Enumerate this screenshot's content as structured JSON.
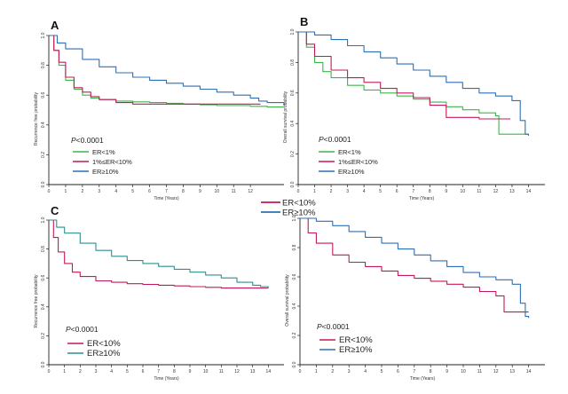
{
  "chart_data": [
    {
      "id": "A",
      "type": "line",
      "panel_label": "A",
      "xlabel": "Time (Years)",
      "ylabel": "Recurrence free probability",
      "xlim": [
        0,
        14
      ],
      "ylim": [
        0,
        1.0
      ],
      "xticks": [
        0,
        1,
        2,
        3,
        4,
        5,
        6,
        7,
        8,
        9,
        10,
        11,
        12
      ],
      "yticks": [
        0.0,
        0.2,
        0.4,
        0.6,
        0.8,
        1.0
      ],
      "pvalue": {
        "p": "P",
        "rest": "<0.0001"
      },
      "legend_size": "small",
      "series": [
        {
          "name": "ER<1%",
          "color": "#3bb54a",
          "x": [
            0,
            0.3,
            0.6,
            1,
            1.5,
            2,
            2.5,
            3,
            4,
            5,
            6,
            7,
            8,
            9,
            10,
            11,
            12,
            13,
            14
          ],
          "y": [
            1,
            0.9,
            0.8,
            0.7,
            0.64,
            0.6,
            0.58,
            0.57,
            0.56,
            0.555,
            0.55,
            0.545,
            0.54,
            0.535,
            0.53,
            0.53,
            0.525,
            0.52,
            0.52
          ]
        },
        {
          "name": "1%≤ER<10%",
          "color": "#c2185b",
          "x": [
            0,
            0.3,
            0.6,
            1,
            1.5,
            2,
            2.5,
            3,
            4,
            5,
            6,
            7,
            8,
            9,
            10,
            11,
            12,
            12.6
          ],
          "y": [
            1,
            0.9,
            0.82,
            0.72,
            0.65,
            0.62,
            0.59,
            0.57,
            0.55,
            0.54,
            0.54,
            0.54,
            0.54,
            0.54,
            0.54,
            0.54,
            0.54,
            0.54
          ]
        },
        {
          "name": "ER≥10%",
          "color": "#2d6fb5",
          "x": [
            0,
            0.5,
            1,
            2,
            3,
            4,
            5,
            6,
            7,
            8,
            9,
            10,
            11,
            12,
            12.5,
            13,
            14
          ],
          "y": [
            1,
            0.95,
            0.91,
            0.84,
            0.79,
            0.75,
            0.72,
            0.7,
            0.68,
            0.66,
            0.64,
            0.62,
            0.6,
            0.58,
            0.56,
            0.55,
            0.53
          ]
        }
      ]
    },
    {
      "id": "B",
      "type": "line",
      "panel_label": "B",
      "xlabel": "Time (Years)",
      "ylabel": "Overall survival probability",
      "xlim": [
        0,
        15
      ],
      "ylim": [
        0,
        1.0
      ],
      "xticks": [
        0,
        1,
        2,
        3,
        4,
        5,
        6,
        7,
        8,
        9,
        10,
        11,
        12,
        13,
        14
      ],
      "yticks": [
        0.0,
        0.2,
        0.4,
        0.6,
        0.8,
        1.0
      ],
      "pvalue": {
        "p": "P",
        "rest": "<0.0001"
      },
      "legend_size": "small",
      "series": [
        {
          "name": "ER<1%",
          "color": "#3bb54a",
          "x": [
            0,
            0.5,
            1,
            1.5,
            2,
            3,
            4,
            5,
            6,
            7,
            8,
            9,
            10,
            11,
            12,
            12.2,
            13,
            14
          ],
          "y": [
            1,
            0.9,
            0.8,
            0.74,
            0.7,
            0.65,
            0.62,
            0.6,
            0.58,
            0.56,
            0.54,
            0.51,
            0.49,
            0.47,
            0.45,
            0.33,
            0.33,
            0.33
          ]
        },
        {
          "name": "1%≤ER<10%",
          "color": "#c2185b",
          "x": [
            0,
            0.5,
            1,
            2,
            3,
            4,
            5,
            6,
            7,
            8,
            9,
            10,
            11,
            12,
            12.9
          ],
          "y": [
            1,
            0.92,
            0.84,
            0.75,
            0.7,
            0.67,
            0.63,
            0.6,
            0.57,
            0.52,
            0.44,
            0.44,
            0.43,
            0.43,
            0.43
          ]
        },
        {
          "name": "ER≥10%",
          "color": "#2d6fb5",
          "x": [
            0,
            1,
            2,
            3,
            4,
            5,
            6,
            7,
            8,
            9,
            10,
            11,
            12,
            13,
            13.5,
            13.8,
            14
          ],
          "y": [
            1,
            0.98,
            0.95,
            0.91,
            0.87,
            0.83,
            0.79,
            0.75,
            0.71,
            0.67,
            0.63,
            0.6,
            0.58,
            0.55,
            0.42,
            0.33,
            0.32
          ]
        }
      ]
    },
    {
      "id": "C",
      "type": "line",
      "panel_label": "C",
      "xlabel": "Time (Years)",
      "ylabel": "Recurrence free probability",
      "xlim": [
        0,
        15
      ],
      "ylim": [
        0,
        1.0
      ],
      "xticks": [
        0,
        1,
        2,
        3,
        4,
        5,
        6,
        7,
        8,
        9,
        10,
        11,
        12,
        13,
        14
      ],
      "yticks": [
        0.0,
        0.2,
        0.4,
        0.6,
        0.8,
        1.0
      ],
      "pvalue": {
        "p": "P",
        "rest": "<0.0001"
      },
      "legend_size": "big",
      "series": [
        {
          "name": "ER<10%",
          "color": "#c2185b",
          "x": [
            0,
            0.3,
            0.6,
            1,
            1.5,
            2,
            3,
            4,
            5,
            6,
            7,
            8,
            9,
            10,
            11,
            12,
            13,
            14
          ],
          "y": [
            1,
            0.88,
            0.78,
            0.7,
            0.64,
            0.61,
            0.58,
            0.57,
            0.56,
            0.555,
            0.55,
            0.545,
            0.54,
            0.535,
            0.53,
            0.53,
            0.53,
            0.53
          ]
        },
        {
          "name": "ER≥10%",
          "color": "#2d8f8f",
          "x": [
            0,
            0.5,
            1,
            2,
            3,
            4,
            5,
            6,
            7,
            8,
            9,
            10,
            11,
            12,
            13,
            13.5,
            14
          ],
          "y": [
            1,
            0.95,
            0.91,
            0.84,
            0.79,
            0.75,
            0.72,
            0.7,
            0.68,
            0.66,
            0.64,
            0.62,
            0.6,
            0.57,
            0.55,
            0.54,
            0.53
          ]
        }
      ]
    },
    {
      "id": "D",
      "type": "line",
      "panel_label": "",
      "xlabel": "Time (Years)",
      "ylabel": "Overall survival probability",
      "xlim": [
        0,
        15
      ],
      "ylim": [
        0,
        1.0
      ],
      "xticks": [
        0,
        1,
        2,
        3,
        4,
        5,
        6,
        7,
        8,
        9,
        10,
        11,
        12,
        13,
        14
      ],
      "yticks": [
        0.0,
        0.2,
        0.4,
        0.6,
        0.8,
        1.0
      ],
      "pvalue": {
        "p": "P",
        "rest": "<0.0001"
      },
      "legend_size": "big",
      "series": [
        {
          "name": "ER<10%",
          "color": "#c2185b",
          "x": [
            0,
            0.5,
            1,
            2,
            3,
            4,
            5,
            6,
            7,
            8,
            9,
            10,
            11,
            12,
            12.5,
            13,
            14
          ],
          "y": [
            1,
            0.9,
            0.83,
            0.75,
            0.7,
            0.67,
            0.64,
            0.61,
            0.59,
            0.57,
            0.55,
            0.53,
            0.5,
            0.47,
            0.36,
            0.36,
            0.36
          ]
        },
        {
          "name": "ER≥10%",
          "color": "#2d6fb5",
          "x": [
            0,
            1,
            2,
            3,
            4,
            5,
            6,
            7,
            8,
            9,
            10,
            11,
            12,
            13,
            13.5,
            13.8,
            14
          ],
          "y": [
            1,
            0.98,
            0.95,
            0.91,
            0.87,
            0.83,
            0.79,
            0.75,
            0.71,
            0.67,
            0.63,
            0.6,
            0.58,
            0.55,
            0.42,
            0.33,
            0.32
          ]
        }
      ]
    }
  ],
  "floating_legend": {
    "items": [
      {
        "name": "ER<10%",
        "color": "#c2185b"
      },
      {
        "name": "ER≥10%",
        "color": "#2d6fb5"
      }
    ]
  }
}
